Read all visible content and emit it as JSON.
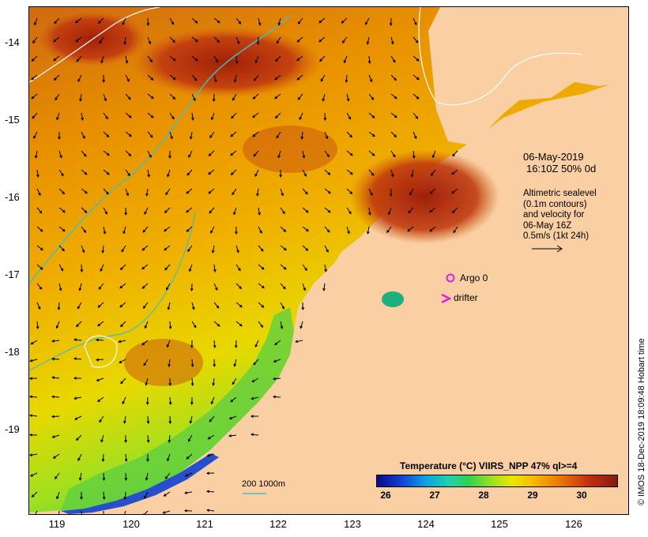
{
  "map": {
    "lat_ticks": [
      "-14",
      "-15",
      "-16",
      "-17",
      "-18",
      "-19"
    ],
    "lon_ticks": [
      "119",
      "120",
      "121",
      "122",
      "123",
      "124",
      "125",
      "126"
    ],
    "annotation_date": "06-May-2019",
    "annotation_time": "16:10Z  50% 0d",
    "altimetry_lines": [
      "Altimetric sealevel",
      "(0.1m contours)",
      "and velocity for",
      "06-May 16Z",
      "0.5m/s (1kt 24h)"
    ],
    "legend_argo": "Argo 0",
    "legend_drifter": "drifter",
    "scale_label": "200  1000m",
    "colorbar_title": "Temperature (°C) VIIRS_NPP 47% ql>=4",
    "colorbar_ticks": [
      "26",
      "27",
      "28",
      "29",
      "30"
    ],
    "credit": "© IMOS 18-Dec-2019 18:09:48 Hobart time",
    "colors": {
      "land": "#f9cfa3",
      "warm": "#c03010",
      "mid": "#f0a000",
      "cool": "#30d050",
      "cold": "#1040d0",
      "argo": "#e020e0",
      "isobath": "#40c0c0"
    }
  }
}
